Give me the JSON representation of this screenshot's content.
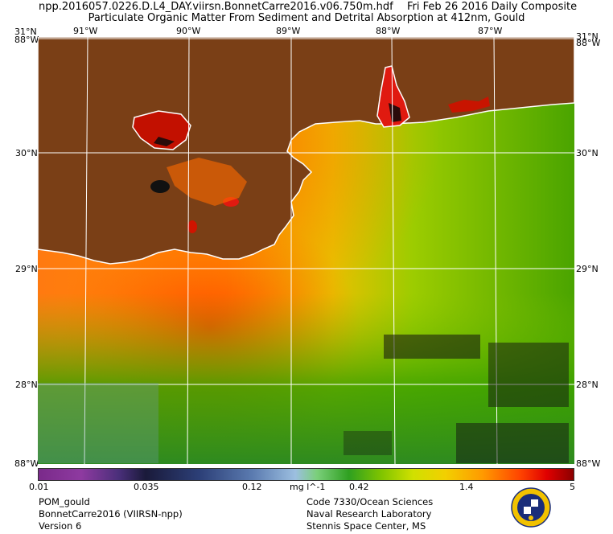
{
  "header": {
    "file_name": "npp.2016057.0226.D.L4_DAY.viirsn.BonnetCarre2016.v06.750m.hdf",
    "date_label": "Fri Feb 26 2016 Daily Composite",
    "product_title": "Particulate Organic Matter From Sediment and Detrital Absorption at 412nm, Gould"
  },
  "axes": {
    "lon_top": [
      "91°W",
      "90°W",
      "89°W",
      "88°W",
      "87°W"
    ],
    "lat_left": [
      "31°N",
      "30°N",
      "29°N",
      "28°N"
    ],
    "lat_right": [
      "31°N",
      "30°N",
      "29°N",
      "28°N"
    ],
    "corner_top_left": "88°W",
    "corner_top_right": "88°W",
    "corner_bottom_left": "88°W",
    "corner_bottom_right": "88°W"
  },
  "colorbar": {
    "labels": [
      "0.01",
      "0.035",
      "0.12",
      "0.42",
      "1.4",
      "5"
    ],
    "unit": "mg l^-1"
  },
  "footer": {
    "left": [
      "POM_gould",
      "BonnetCarre2016 (VIIRSN-npp)",
      "Version 6"
    ],
    "right": [
      "Code 7330/Ocean Sciences",
      "Naval Research Laboratory",
      "Stennis Space Center, MS"
    ]
  },
  "colors": {
    "land": "#7a3f16",
    "coast": "#ffffff",
    "high": "#d11a00",
    "mid": "#ff9a00",
    "low": "#4aa800"
  },
  "icons": [
    "nrl-seal-icon"
  ]
}
